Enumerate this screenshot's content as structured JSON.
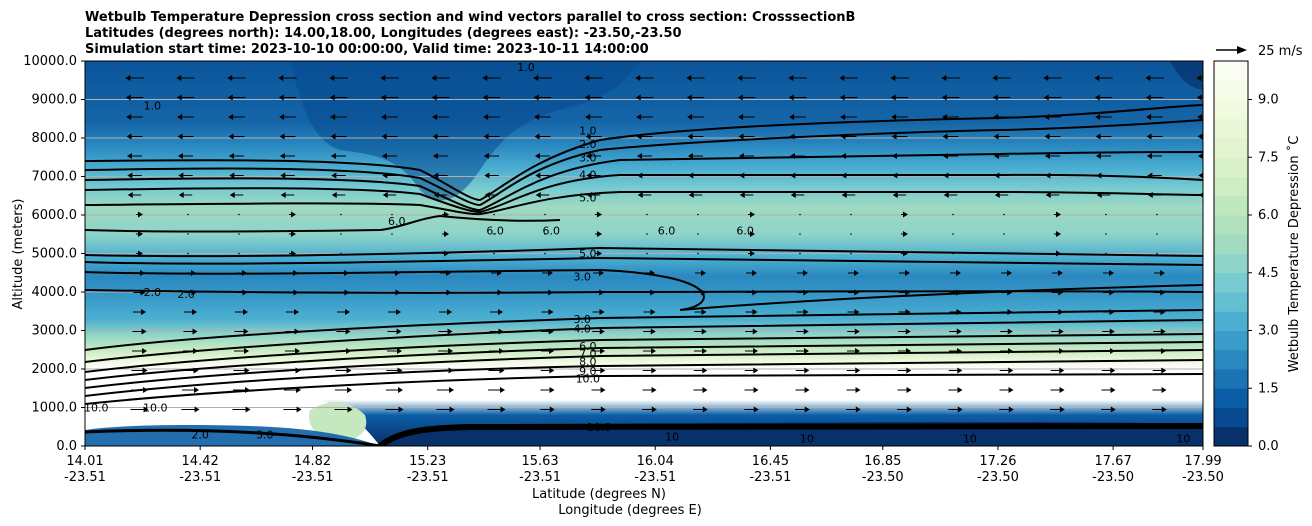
{
  "chart_data": {
    "type": "contour",
    "title_lines": [
      "Wetbulb Temperature Depression cross section and wind vectors parallel to cross section: CrosssectionB",
      "Latitudes (degrees north): 14.00,18.00, Longitudes (degrees east): -23.50,-23.50",
      "Simulation start time: 2023-10-10 00:00:00, Valid time: 2023-10-11 14:00:00"
    ],
    "ylabel": "Altitude (meters)",
    "xlabel_lines": [
      "Latitude (degrees N)",
      "Longitude (degrees E)"
    ],
    "ylim": [
      0,
      10000
    ],
    "yticks": [
      "0.0",
      "1000.0",
      "2000.0",
      "3000.0",
      "4000.0",
      "5000.0",
      "6000.0",
      "7000.0",
      "8000.0",
      "9000.0",
      "10000.0"
    ],
    "xticks": [
      {
        "lat": "14.01",
        "lon": "-23.51"
      },
      {
        "lat": "14.42",
        "lon": "-23.51"
      },
      {
        "lat": "14.82",
        "lon": "-23.51"
      },
      {
        "lat": "15.23",
        "lon": "-23.51"
      },
      {
        "lat": "15.63",
        "lon": "-23.51"
      },
      {
        "lat": "16.04",
        "lon": "-23.51"
      },
      {
        "lat": "16.45",
        "lon": "-23.51"
      },
      {
        "lat": "16.85",
        "lon": "-23.50"
      },
      {
        "lat": "17.26",
        "lon": "-23.50"
      },
      {
        "lat": "17.67",
        "lon": "-23.50"
      },
      {
        "lat": "17.99",
        "lon": "-23.50"
      }
    ],
    "xlim": [
      14.01,
      17.99
    ],
    "grid": "horizontal",
    "colorbar": {
      "label": "Wetbulb Temperature Depression $^\\circ$C",
      "label_display": "Wetbulb Temperature Depression ˚C",
      "range": [
        0,
        10
      ],
      "ticks": [
        "0.0",
        "1.5",
        "3.0",
        "4.5",
        "6.0",
        "7.5",
        "9.0"
      ],
      "levels": 20,
      "colors_low_to_high": [
        "#08306b",
        "#084a8f",
        "#0b5ea6",
        "#1a74b4",
        "#2a88c0",
        "#3a9cc9",
        "#4cafd1",
        "#63c0d2",
        "#78cbd0",
        "#8ed4c8",
        "#a0dbc2",
        "#b1e2bd",
        "#c0e8be",
        "#cdedc3",
        "#d8f1c8",
        "#e1f4cf",
        "#e9f7d7",
        "#f0faDF",
        "#f5fce8",
        "#fafdf2"
      ]
    },
    "wind_key": {
      "label": "25 m/s"
    },
    "contour_labels": [
      {
        "x": 15.58,
        "z": 9850,
        "text": "1.0"
      },
      {
        "x": 15.8,
        "z": 8200,
        "text": "1.0"
      },
      {
        "x": 15.8,
        "z": 7850,
        "text": "2.0"
      },
      {
        "x": 15.8,
        "z": 7500,
        "text": "3.0"
      },
      {
        "x": 15.8,
        "z": 7050,
        "text": "4.0"
      },
      {
        "x": 15.8,
        "z": 6450,
        "text": "5.0"
      },
      {
        "x": 15.8,
        "z": 5000,
        "text": "5.0"
      },
      {
        "x": 15.78,
        "z": 4400,
        "text": "3.0"
      },
      {
        "x": 15.78,
        "z": 3300,
        "text": "3.0"
      },
      {
        "x": 15.78,
        "z": 3050,
        "text": "4.0"
      },
      {
        "x": 15.8,
        "z": 2600,
        "text": "6.0"
      },
      {
        "x": 15.8,
        "z": 2400,
        "text": "7.0"
      },
      {
        "x": 15.8,
        "z": 2200,
        "text": "8.0"
      },
      {
        "x": 15.8,
        "z": 1950,
        "text": "9.0"
      },
      {
        "x": 15.8,
        "z": 1750,
        "text": "10.0"
      },
      {
        "x": 14.25,
        "z": 8850,
        "text": "1.0"
      },
      {
        "x": 15.12,
        "z": 5850,
        "text": "6.0"
      },
      {
        "x": 15.47,
        "z": 5600,
        "text": "6.0"
      },
      {
        "x": 15.67,
        "z": 5600,
        "text": "6.0"
      },
      {
        "x": 16.08,
        "z": 5600,
        "text": "6.0"
      },
      {
        "x": 16.36,
        "z": 5600,
        "text": "6.0"
      },
      {
        "x": 14.25,
        "z": 4000,
        "text": "2.0"
      },
      {
        "x": 14.37,
        "z": 3950,
        "text": "2.0"
      },
      {
        "x": 14.26,
        "z": 1000,
        "text": "10.0"
      },
      {
        "x": 14.05,
        "z": 1000,
        "text": "10.0"
      },
      {
        "x": 14.65,
        "z": 300,
        "text": "3.0"
      },
      {
        "x": 14.42,
        "z": 300,
        "text": "2.0"
      },
      {
        "x": 15.84,
        "z": 500,
        "text": "10.0"
      },
      {
        "x": 16.1,
        "z": 250,
        "text": "10"
      },
      {
        "x": 16.58,
        "z": 200,
        "text": "10"
      },
      {
        "x": 17.16,
        "z": 200,
        "text": "10"
      },
      {
        "x": 17.92,
        "z": 200,
        "text": "10"
      }
    ]
  }
}
